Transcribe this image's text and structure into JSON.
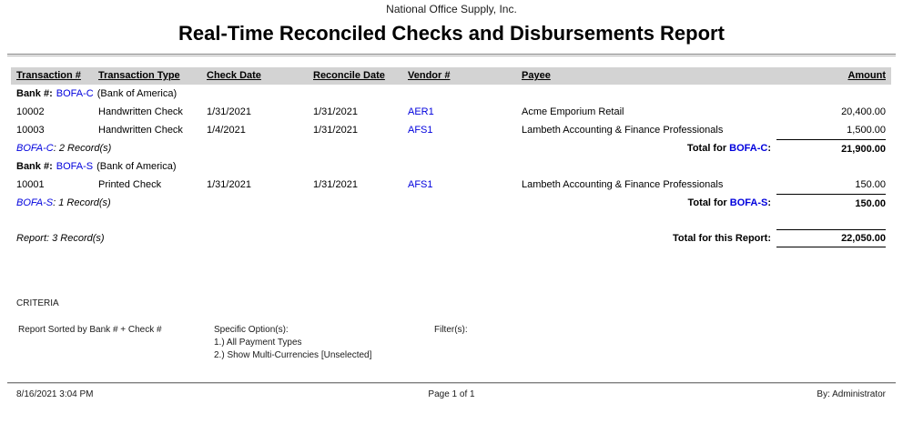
{
  "colors": {
    "link_blue": "#0000dd",
    "header_bar_gray": "#d3d3d3"
  },
  "header": {
    "company": "National Office Supply, Inc.",
    "title": "Real-Time Reconciled Checks and Disbursements Report"
  },
  "table": {
    "columns": [
      "Transaction #",
      "Transaction Type",
      "Check Date",
      "Reconcile Date",
      "Vendor #",
      "Payee",
      "Amount"
    ],
    "groups": [
      {
        "bank_label": "Bank #:",
        "bank_code": "BOFA-C",
        "bank_name": "(Bank of America)",
        "rows": [
          {
            "transaction": "10002",
            "type": "Handwritten Check",
            "check_date": "1/31/2021",
            "reconcile_date": "1/31/2021",
            "vendor": "AER1",
            "payee": "Acme Emporium Retail",
            "amount": "20,400.00"
          },
          {
            "transaction": "10003",
            "type": "Handwritten Check",
            "check_date": "1/4/2021",
            "reconcile_date": "1/31/2021",
            "vendor": "AFS1",
            "payee": "Lambeth Accounting & Finance Professionals",
            "amount": "1,500.00"
          }
        ],
        "records_text": ": 2 Record(s)",
        "total_prefix": "Total for ",
        "total_colon": ":",
        "total": "21,900.00"
      },
      {
        "bank_label": "Bank #:",
        "bank_code": "BOFA-S",
        "bank_name": "(Bank of America)",
        "rows": [
          {
            "transaction": "10001",
            "type": "Printed Check",
            "check_date": "1/31/2021",
            "reconcile_date": "1/31/2021",
            "vendor": "AFS1",
            "payee": "Lambeth Accounting & Finance Professionals",
            "amount": "150.00"
          }
        ],
        "records_text": ": 1 Record(s)",
        "total_prefix": "Total for ",
        "total_colon": ":",
        "total": "150.00"
      }
    ],
    "report_summary": {
      "records": "Report: 3 Record(s)",
      "total_label": "Total for this Report:",
      "total": "22,050.00"
    }
  },
  "criteria": {
    "heading": "CRITERIA",
    "sorted_by": "Report Sorted by Bank # + Check #",
    "options_label": "Specific Option(s):",
    "options": [
      "1.) All Payment Types",
      "2.) Show Multi-Currencies [Unselected]"
    ],
    "filters_label": "Filter(s):"
  },
  "footer": {
    "datetime": "8/16/2021 3:04 PM",
    "page": "Page 1 of 1",
    "by": "By: Administrator"
  }
}
